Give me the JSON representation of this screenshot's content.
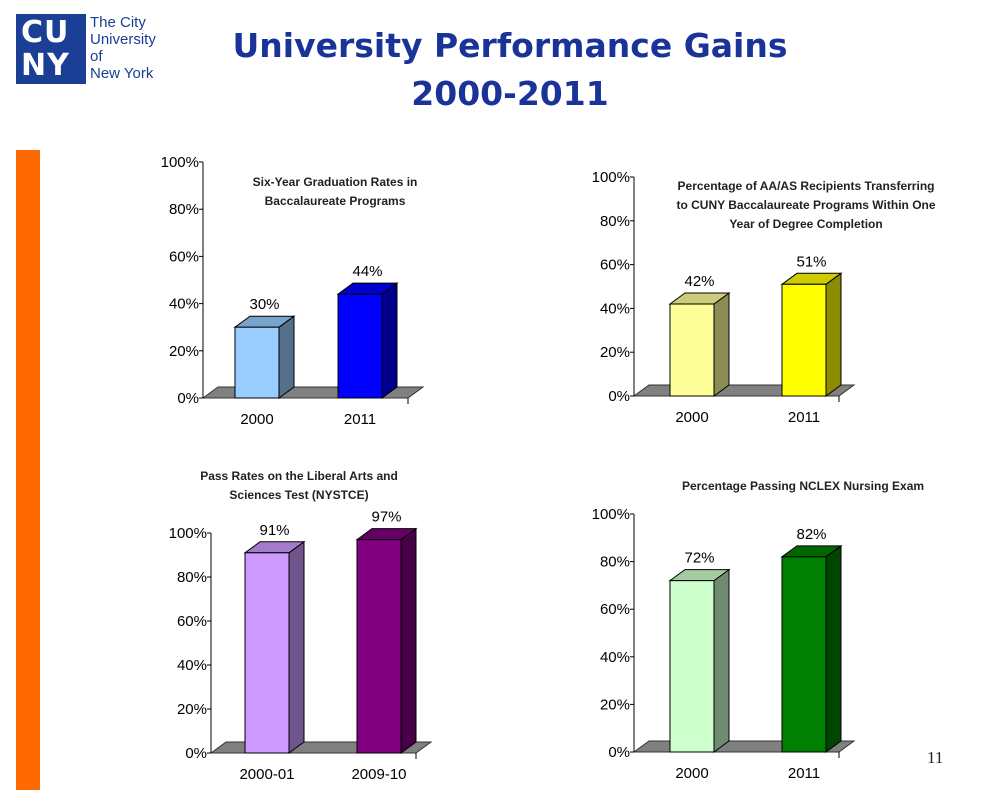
{
  "logo": {
    "mark_lines": [
      "CU",
      "NY"
    ],
    "text_lines": [
      "The City",
      "University",
      "of",
      "New York"
    ],
    "color": "#1a3f94"
  },
  "slide": {
    "title_lines": [
      "University Performance Gains",
      "2000-2011"
    ],
    "page_number": "11",
    "accent_color": "#ff6a00"
  },
  "chart_data": [
    {
      "type": "bar",
      "title_lines": [
        "Six-Year Graduation Rates in",
        "Baccalaureate Programs"
      ],
      "categories": [
        "2000",
        "2011"
      ],
      "values": [
        30,
        44
      ],
      "value_labels": [
        "30%",
        "44%"
      ],
      "bar_colors": [
        "#99ccff",
        "#0000ff"
      ],
      "ylim": [
        0,
        100
      ],
      "yticks": [
        "0%",
        "20%",
        "40%",
        "60%",
        "80%",
        "100%"
      ],
      "legend": "none",
      "grid": false
    },
    {
      "type": "bar",
      "title_lines": [
        "Percentage  of AA/AS Recipients Transferring",
        "to CUNY Baccalaureate Programs Within One",
        "Year of Degree Completion"
      ],
      "categories": [
        "2000",
        "2011"
      ],
      "values": [
        42,
        51
      ],
      "value_labels": [
        "42%",
        "51%"
      ],
      "bar_colors": [
        "#ffff99",
        "#ffff00"
      ],
      "ylim": [
        0,
        100
      ],
      "yticks": [
        "0%",
        "20%",
        "40%",
        "60%",
        "80%",
        "100%"
      ],
      "legend": "none",
      "grid": false
    },
    {
      "type": "bar",
      "title_lines": [
        "Pass Rates on the Liberal Arts and",
        "Sciences Test (NYSTCE)"
      ],
      "categories": [
        "2000-01",
        "2009-10"
      ],
      "values": [
        91,
        97
      ],
      "value_labels": [
        "91%",
        "97%"
      ],
      "bar_colors": [
        "#cc99ff",
        "#800080"
      ],
      "ylim": [
        0,
        100
      ],
      "yticks": [
        "0%",
        "20%",
        "40%",
        "60%",
        "80%",
        "100%"
      ],
      "legend": "none",
      "grid": false
    },
    {
      "type": "bar",
      "title_lines": [
        "Percentage  Passing NCLEX Nursing Exam"
      ],
      "categories": [
        "2000",
        "2011"
      ],
      "values": [
        72,
        82
      ],
      "value_labels": [
        "72%",
        "82%"
      ],
      "bar_colors": [
        "#ccffcc",
        "#008000"
      ],
      "ylim": [
        0,
        100
      ],
      "yticks": [
        "0%",
        "20%",
        "40%",
        "60%",
        "80%",
        "100%"
      ],
      "legend": "none",
      "grid": false
    }
  ]
}
